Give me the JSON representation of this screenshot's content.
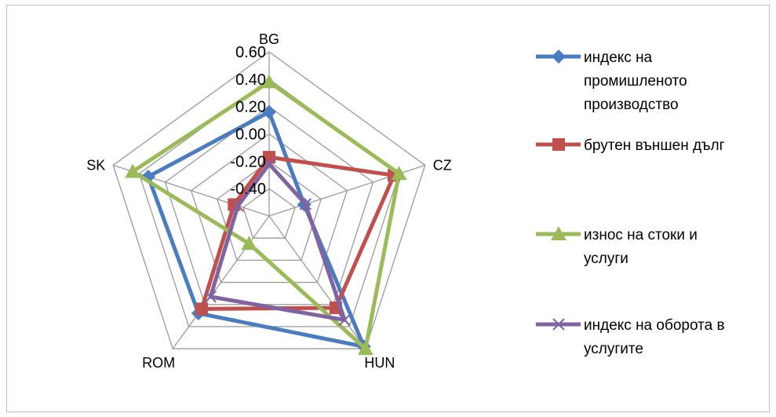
{
  "chart_data": {
    "type": "radar",
    "axes": [
      "BG",
      "CZ",
      "HUN",
      "ROM",
      "SK"
    ],
    "rlim": [
      -0.6,
      0.6
    ],
    "ticks": [
      0.6,
      0.4,
      0.2,
      0.0,
      -0.2,
      -0.4
    ],
    "tick_labels": [
      "0.60",
      "0.40",
      "0.20",
      "0.00",
      "-0.20",
      "-0.40"
    ],
    "grid": true,
    "legend_position": "right",
    "series": [
      {
        "name": "индекс на промишленото производство",
        "color": "#4a7cc0",
        "marker": "diamond",
        "values": [
          0.16,
          -0.33,
          0.58,
          0.28,
          0.33
        ]
      },
      {
        "name": "брутен външен дълг",
        "color": "#c0504d",
        "marker": "square",
        "values": [
          -0.17,
          0.36,
          0.23,
          0.24,
          -0.33
        ]
      },
      {
        "name": "износ на стоки и услуги",
        "color": "#9bbb59",
        "marker": "triangle",
        "values": [
          0.38,
          0.4,
          0.6,
          -0.35,
          0.45
        ]
      },
      {
        "name": "индекс на оборота в услугите",
        "color": "#8064a2",
        "marker": "x",
        "values": [
          -0.22,
          -0.32,
          0.34,
          0.13,
          -0.36
        ]
      }
    ]
  },
  "legend": {
    "items": [
      {
        "lines": [
          "индекс на",
          "промишленото",
          "производство"
        ]
      },
      {
        "lines": [
          "брутен външен дълг"
        ]
      },
      {
        "lines": [
          "износ на стоки и",
          "услуги"
        ]
      },
      {
        "lines": [
          "индекс на оборота в",
          "услугите"
        ]
      }
    ]
  }
}
